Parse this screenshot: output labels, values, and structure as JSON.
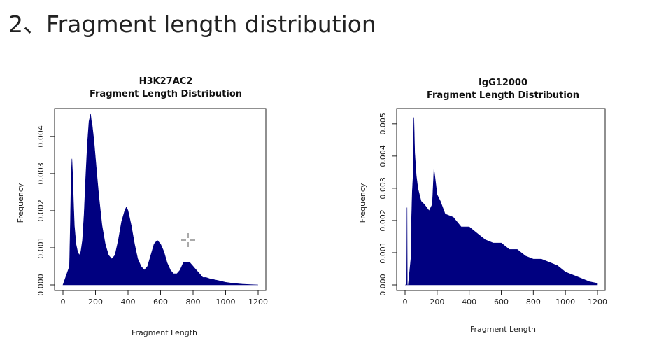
{
  "slide": {
    "title": "2、Fragment length distribution"
  },
  "colors": {
    "fill": "#000080",
    "axis": "#222222"
  },
  "chart_data": [
    {
      "type": "area",
      "title": "H3K27AC2",
      "subtitle": "Fragment Length Distribution",
      "xlabel": "Fragment Length",
      "ylabel": "Frequency",
      "xlim": [
        0,
        1200
      ],
      "ylim": [
        0,
        0.0046
      ],
      "xticks": [
        "0",
        "200",
        "400",
        "600",
        "800",
        "1000",
        "1200"
      ],
      "yticks": [
        "0.000",
        "0.001",
        "0.002",
        "0.003",
        "0.004"
      ],
      "grid": false,
      "x": [
        0,
        40,
        45,
        50,
        55,
        60,
        65,
        70,
        80,
        90,
        100,
        110,
        120,
        130,
        140,
        150,
        160,
        170,
        175,
        180,
        185,
        190,
        200,
        210,
        220,
        240,
        260,
        280,
        300,
        320,
        340,
        360,
        380,
        390,
        400,
        420,
        440,
        460,
        480,
        500,
        520,
        540,
        560,
        580,
        600,
        620,
        640,
        660,
        680,
        700,
        720,
        740,
        760,
        780,
        800,
        820,
        840,
        860,
        880,
        900,
        950,
        1000,
        1050,
        1100,
        1150,
        1200
      ],
      "y": [
        0.0,
        0.0005,
        0.0016,
        0.0028,
        0.0034,
        0.0029,
        0.0022,
        0.0016,
        0.0011,
        0.0009,
        0.0008,
        0.0009,
        0.0012,
        0.0019,
        0.0029,
        0.0038,
        0.0044,
        0.0046,
        0.0044,
        0.0043,
        0.0041,
        0.0039,
        0.0034,
        0.0029,
        0.0024,
        0.0016,
        0.0011,
        0.0008,
        0.0007,
        0.0008,
        0.0012,
        0.0017,
        0.002,
        0.0021,
        0.002,
        0.0016,
        0.0011,
        0.0007,
        0.0005,
        0.0004,
        0.0005,
        0.0008,
        0.0011,
        0.0012,
        0.0011,
        0.0009,
        0.0006,
        0.0004,
        0.0003,
        0.0003,
        0.0004,
        0.0006,
        0.0006,
        0.0006,
        0.0005,
        0.0004,
        0.0003,
        0.0002,
        0.0002,
        0.00017,
        0.00012,
        7e-05,
        4e-05,
        2e-05,
        1e-05,
        0.0
      ]
    },
    {
      "type": "area",
      "title": "IgG12000",
      "subtitle": "Fragment Length Distribution",
      "xlabel": "Fragment Length",
      "ylabel": "Frequency",
      "xlim": [
        0,
        1200
      ],
      "ylim": [
        0,
        0.0053
      ],
      "xticks": [
        "0",
        "200",
        "400",
        "600",
        "800",
        "1000",
        "1200"
      ],
      "yticks": [
        "0.000",
        "0.001",
        "0.002",
        "0.003",
        "0.004",
        "0.005"
      ],
      "grid": false,
      "x": [
        0,
        10,
        12,
        14,
        20,
        30,
        38,
        40,
        45,
        50,
        55,
        60,
        70,
        80,
        90,
        100,
        120,
        150,
        170,
        180,
        200,
        220,
        250,
        300,
        350,
        400,
        450,
        500,
        550,
        600,
        650,
        700,
        750,
        800,
        850,
        900,
        950,
        1000,
        1050,
        1100,
        1150,
        1200
      ],
      "y": [
        0.0,
        0.0,
        0.0024,
        0.0,
        0.0,
        0.0005,
        0.0009,
        0.002,
        0.0029,
        0.0034,
        0.0052,
        0.0041,
        0.0034,
        0.003,
        0.0028,
        0.0026,
        0.0025,
        0.0023,
        0.0025,
        0.0036,
        0.0028,
        0.0026,
        0.0022,
        0.0021,
        0.0018,
        0.0018,
        0.0016,
        0.0014,
        0.0013,
        0.0013,
        0.0011,
        0.0011,
        0.0009,
        0.0008,
        0.0008,
        0.0007,
        0.0006,
        0.0004,
        0.0003,
        0.0002,
        0.0001,
        5e-05
      ]
    }
  ]
}
